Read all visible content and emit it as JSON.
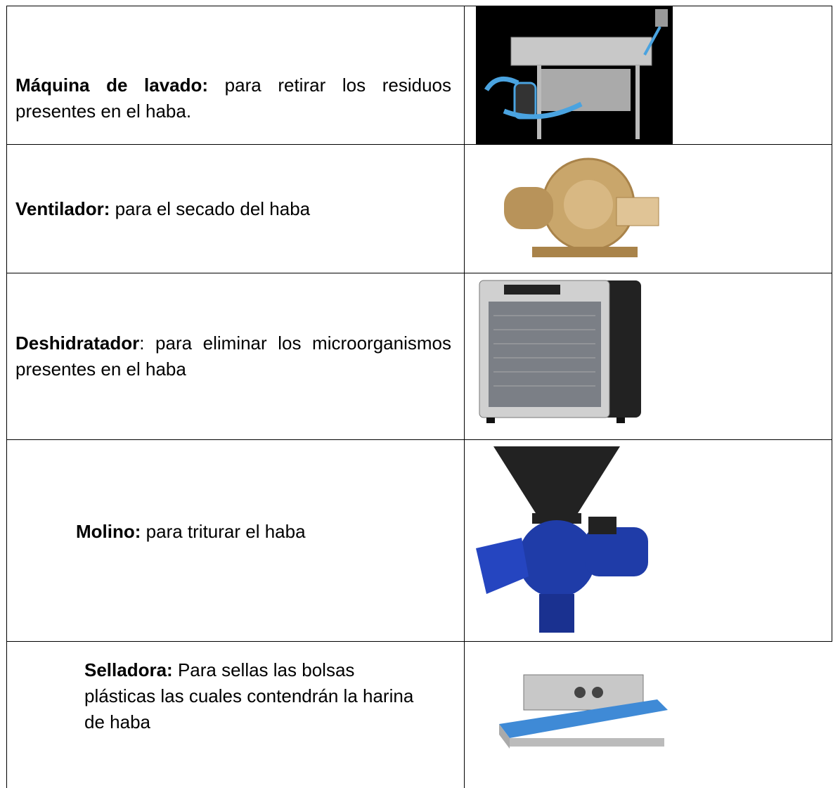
{
  "table": {
    "rows": [
      {
        "term": "Máquina de lavado:",
        "description": " para retirar los residuos presentes en el haba."
      },
      {
        "term": "Ventilador:",
        "description": " para el secado del haba"
      },
      {
        "term": "Deshidratador",
        "description": ": para eliminar los microorganismos presentes en el haba"
      },
      {
        "term": "Molino:",
        "description": " para triturar el haba"
      },
      {
        "term": "Selladora:",
        "description": " Para sellas las bolsas plásticas las cuales contendrán la harina de haba"
      }
    ]
  }
}
